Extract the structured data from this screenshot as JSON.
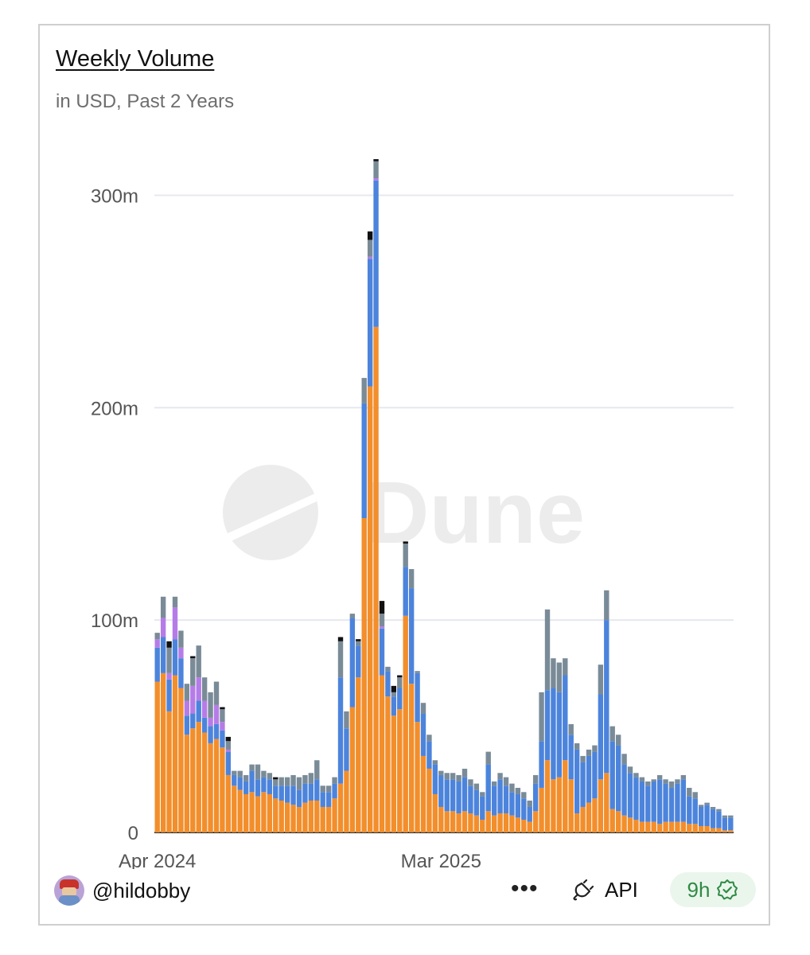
{
  "chart": {
    "title": "Weekly Volume",
    "subtitle": "in USD, Past 2 Years",
    "watermark": "Dune"
  },
  "chart_data": {
    "type": "bar",
    "stacked": true,
    "title": "Weekly Volume",
    "subtitle": "in USD, Past 2 Years",
    "ylabel": "USD",
    "ylim": [
      0,
      320
    ],
    "y_unit": "m",
    "yticks": [
      0,
      100,
      200,
      300
    ],
    "ytick_labels": [
      "0",
      "100m",
      "200m",
      "300m"
    ],
    "xtick_labels": [
      "Apr 2024",
      "Mar 2025"
    ],
    "xtick_indices": [
      0,
      48
    ],
    "grid": true,
    "legend": "none",
    "num_weeks": 98,
    "series": [
      {
        "name": "orange",
        "color": "#f28e2c",
        "values": [
          71,
          75,
          57,
          74,
          68,
          46,
          49,
          52,
          47,
          42,
          44,
          40,
          27,
          22,
          20,
          18,
          19,
          17,
          19,
          18,
          16,
          15,
          14,
          13,
          12,
          14,
          15,
          15,
          12,
          12,
          16,
          23,
          29,
          59,
          73,
          148,
          210,
          238,
          74,
          64,
          55,
          58,
          102,
          70,
          52,
          36,
          30,
          18,
          12,
          10,
          10,
          9,
          10,
          9,
          8,
          6,
          10,
          8,
          9,
          9,
          8,
          7,
          6,
          5,
          10,
          21,
          34,
          25,
          26,
          34,
          25,
          9,
          12,
          14,
          16,
          25,
          28,
          11,
          10,
          8,
          7,
          6,
          5,
          5,
          5,
          4,
          5,
          5,
          5,
          5,
          4,
          4,
          3,
          3,
          2,
          2,
          1,
          1
        ]
      },
      {
        "name": "blue",
        "color": "#4c84dc",
        "values": [
          16,
          17,
          15,
          17,
          14,
          9,
          7,
          10,
          7,
          8,
          7,
          8,
          11,
          5,
          6,
          6,
          10,
          8,
          7,
          7,
          6,
          7,
          8,
          9,
          8,
          9,
          8,
          10,
          7,
          7,
          7,
          50,
          20,
          42,
          15,
          54,
          60,
          69,
          22,
          12,
          9,
          10,
          23,
          45,
          23,
          20,
          13,
          14,
          15,
          15,
          15,
          15,
          16,
          13,
          12,
          11,
          22,
          14,
          16,
          13,
          11,
          11,
          10,
          7,
          13,
          22,
          33,
          43,
          40,
          40,
          21,
          30,
          21,
          22,
          22,
          40,
          72,
          32,
          31,
          24,
          21,
          20,
          19,
          17,
          19,
          21,
          18,
          16,
          18,
          20,
          13,
          12,
          9,
          10,
          9,
          8,
          6,
          6
        ]
      },
      {
        "name": "purple",
        "color": "#b57ce8",
        "values": [
          4,
          9,
          3,
          15,
          5,
          7,
          13,
          11,
          8,
          4,
          9,
          4,
          1,
          0,
          0,
          0,
          0,
          0,
          0,
          0,
          0,
          0,
          0,
          0,
          0,
          0,
          0,
          0,
          0,
          0,
          0,
          0,
          0,
          0,
          0,
          0,
          1,
          1,
          1,
          0,
          0,
          0,
          0,
          0,
          0,
          0,
          0,
          0,
          0,
          0,
          0,
          0,
          0,
          0,
          0,
          0,
          0,
          0,
          0,
          0,
          0,
          0,
          0,
          0,
          0,
          0,
          0,
          0,
          0,
          0,
          0,
          0,
          0,
          0,
          0,
          0,
          0,
          0,
          0,
          0,
          0,
          0,
          0,
          0,
          0,
          0,
          0,
          0,
          0,
          0,
          0,
          0,
          0,
          0,
          0,
          0,
          0,
          0
        ]
      },
      {
        "name": "gray",
        "color": "#7a8b98",
        "values": [
          3,
          10,
          12,
          5,
          8,
          8,
          13,
          15,
          11,
          12,
          11,
          6,
          4,
          2,
          3,
          3,
          3,
          7,
          3,
          3,
          3,
          4,
          4,
          5,
          6,
          4,
          5,
          9,
          3,
          3,
          3,
          17,
          8,
          2,
          2,
          12,
          8,
          8,
          6,
          2,
          2,
          5,
          11,
          9,
          1,
          5,
          3,
          2,
          2,
          3,
          3,
          3,
          4,
          3,
          3,
          2,
          6,
          2,
          3,
          4,
          4,
          3,
          3,
          3,
          4,
          23,
          38,
          14,
          14,
          8,
          5,
          3,
          3,
          3,
          3,
          14,
          14,
          7,
          5,
          5,
          3,
          2,
          2,
          2,
          1,
          2,
          2,
          3,
          2,
          2,
          4,
          3,
          1,
          1,
          1,
          1,
          1,
          1
        ]
      },
      {
        "name": "black",
        "color": "#111111",
        "values": [
          0,
          0,
          3,
          0,
          0,
          0,
          1,
          0,
          0,
          0,
          0,
          1,
          2,
          0,
          0,
          0,
          0,
          0,
          0,
          0,
          1,
          0,
          0,
          0,
          0,
          0,
          0,
          0,
          0,
          0,
          0,
          2,
          0,
          0,
          1,
          0,
          4,
          1,
          6,
          0,
          3,
          1,
          1,
          0,
          0,
          0,
          0,
          0,
          0,
          0,
          0,
          0,
          0,
          0,
          0,
          0,
          0,
          0,
          0,
          0,
          0,
          0,
          0,
          0,
          0,
          0,
          0,
          0,
          0,
          0,
          0,
          0,
          0,
          0,
          0,
          0,
          0,
          0,
          0,
          0,
          0,
          0,
          0,
          0,
          0,
          0,
          0,
          0,
          0,
          0,
          0,
          0,
          0,
          0,
          0,
          0,
          0,
          0
        ]
      }
    ]
  },
  "footer": {
    "username": "@hildobby",
    "more_label": "•••",
    "api_label": "API",
    "freshness": "9h"
  }
}
